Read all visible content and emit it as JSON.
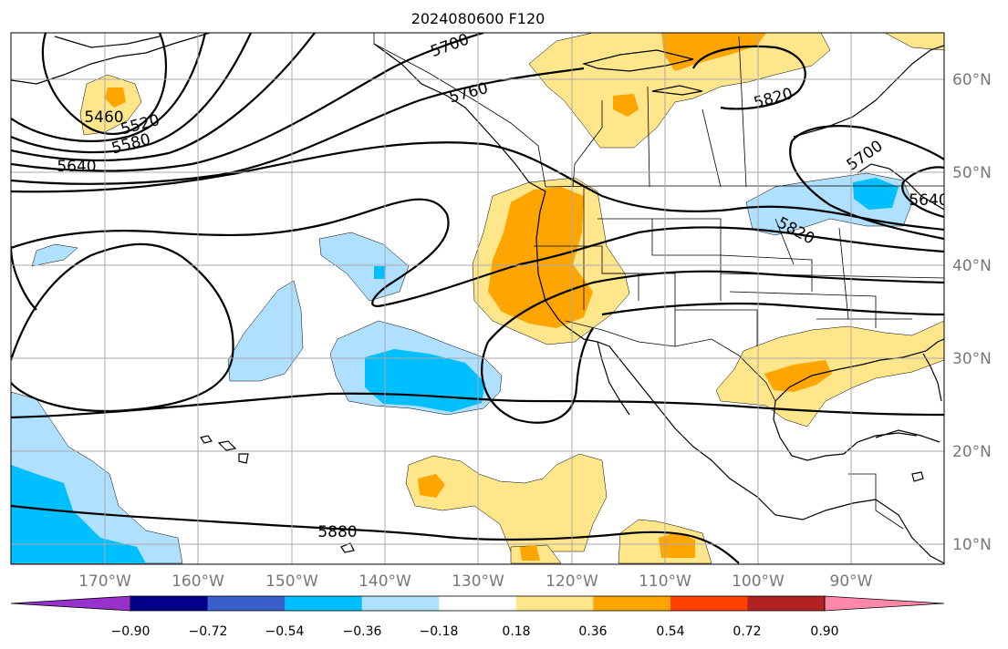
{
  "title": "2024080600 F120",
  "lon_labels": [
    "170°W",
    "160°W",
    "150°W",
    "140°W",
    "130°W",
    "120°W",
    "110°W",
    "100°W",
    "90°W"
  ],
  "lat_labels": [
    "60°N",
    "50°N",
    "40°N",
    "30°N",
    "20°N",
    "10°N"
  ],
  "colorbar": {
    "ticks": [
      "−0.90",
      "−0.72",
      "−0.54",
      "−0.36",
      "−0.18",
      "0.18",
      "0.36",
      "0.54",
      "0.72",
      "0.90"
    ],
    "colors": [
      "#9932cc",
      "#00008b",
      "#3a5fcd",
      "#00bfff",
      "#b0e0ff",
      "#ffffff",
      "#ffe68a",
      "#ffa500",
      "#ff4000",
      "#b22222",
      "#ff88aa"
    ]
  },
  "contour_labels": [
    "5460",
    "5520",
    "5580",
    "5640",
    "5700",
    "5760",
    "5820",
    "5700",
    "5640",
    "5820",
    "5880"
  ],
  "map": {
    "projection": "equirectangular",
    "extent": {
      "lon_min": -180,
      "lon_max": -80,
      "lat_min": 8,
      "lat_max": 65
    },
    "anomaly_colors": {
      "light_blue": "#b0e0ff",
      "blue": "#00bfff",
      "yellow": "#ffe68a",
      "orange": "#ffa500"
    }
  }
}
